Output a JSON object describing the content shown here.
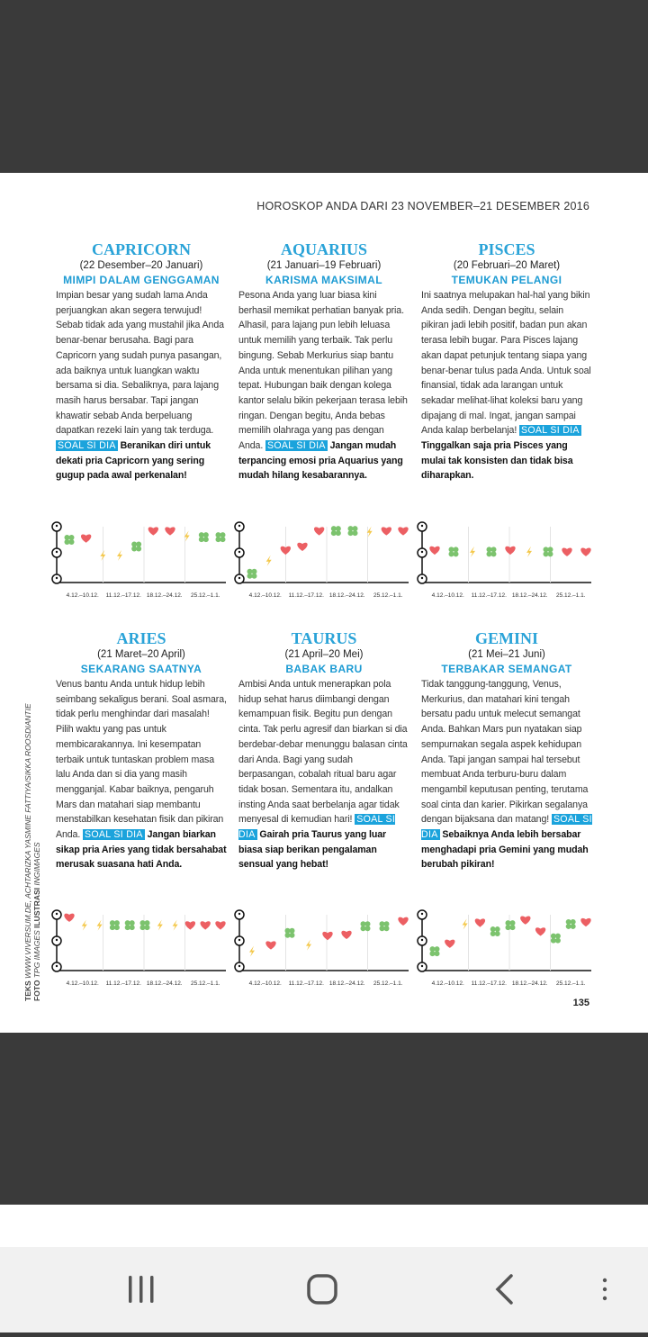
{
  "header": {
    "title": "HOROSKOP ANDA DARI 23 NOVEMBER–21 DESEMBER 2016"
  },
  "tip_label": "SOAL SI DIA",
  "weeks": [
    "4.12.–10.12.",
    "11.12.–17.12.",
    "18.12.–24.12.",
    "25.12.–1.1."
  ],
  "signs": [
    {
      "name": "CAPRICORN",
      "dates": "(22 Desember–20 Januari)",
      "subtitle": "MIMPI DALAM GENGGAMAN",
      "body": "Impian besar yang sudah lama Anda perjuangkan akan segera terwujud! Sebab tidak ada yang mustahil jika Anda benar-benar berusaha. Bagi para Capricorn yang sudah punya pasangan, ada baiknya untuk luangkan waktu bersama si dia. Sebaliknya, para lajang masih harus bersabar. Tapi jangan khawatir sebab Anda berpeluang dapatkan rezeki lain yang tak terduga.",
      "tip": "Beranikan diri untuk dekati pria Capricorn yang sering gugup pada awal perkenalan!"
    },
    {
      "name": "AQUARIUS",
      "dates": "(21 Januari–19 Februari)",
      "subtitle": "KARISMA MAKSIMAL",
      "body": "Pesona Anda yang luar biasa kini berhasil memikat perhatian banyak pria. Alhasil, para lajang pun lebih leluasa untuk memilih yang terbaik. Tak perlu bingung. Sebab Merkurius siap bantu Anda untuk menentukan pilihan yang tepat. Hubungan baik dengan kolega kantor selalu bikin pekerjaan terasa lebih ringan. Dengan begitu, Anda bebas memilih olahraga yang pas dengan Anda.",
      "tip": "Jangan mudah terpancing emosi pria Aquarius yang mudah hilang kesabarannya."
    },
    {
      "name": "PISCES",
      "dates": "(20 Februari–20 Maret)",
      "subtitle": "TEMUKAN PELANGI",
      "body": "Ini saatnya melupakan hal-hal yang bikin Anda sedih. Dengan begitu, selain pikiran jadi lebih positif, badan pun akan terasa lebih bugar. Para Pisces lajang akan dapat petunjuk tentang siapa yang benar-benar tulus pada Anda. Untuk soal finansial, tidak ada larangan untuk sekadar melihat-lihat koleksi baru yang dipajang di mal. Ingat, jangan sampai Anda kalap berbelanja!",
      "tip": "Tinggalkan saja pria Pisces yang mulai tak konsisten dan tidak bisa diharapkan."
    },
    {
      "name": "ARIES",
      "dates": "(21 Maret–20 April)",
      "subtitle": "SEKARANG SAATNYA",
      "body": "Venus bantu Anda untuk hidup lebih seimbang sekaligus berani. Soal asmara, tidak perlu menghindar dari masalah! Pilih waktu yang pas untuk membicarakannya. Ini kesempatan terbaik untuk tuntaskan problem masa lalu Anda dan si dia yang masih mengganjal. Kabar baiknya, pengaruh Mars dan matahari siap membantu menstabilkan kesehatan fisik dan pikiran Anda.",
      "tip": "Jangan biarkan sikap pria Aries yang tidak bersahabat merusak suasana hati Anda."
    },
    {
      "name": "TAURUS",
      "dates": "(21 April–20 Mei)",
      "subtitle": "BABAK BARU",
      "body": "Ambisi Anda untuk menerapkan pola hidup sehat harus diimbangi dengan kemampuan fisik. Begitu pun dengan cinta. Tak perlu agresif dan biarkan si dia berdebar-debar menunggu balasan cinta dari Anda. Bagi yang sudah berpasangan, cobalah ritual baru agar tidak bosan. Sementara itu, andalkan insting Anda saat berbelanja agar tidak menyesal di kemudian hari!",
      "tip": "Gairah pria Taurus yang luar biasa siap berikan pengalaman sensual yang hebat!"
    },
    {
      "name": "GEMINI",
      "dates": "(21 Mei–21 Juni)",
      "subtitle": "TERBAKAR SEMANGAT",
      "body": "Tidak tanggung-tanggung, Venus, Merkurius, dan matahari kini tengah bersatu padu untuk melecut semangat Anda. Bahkan Mars pun nyatakan siap sempurnakan segala aspek kehidupan Anda. Tapi jangan sampai hal tersebut membuat Anda terburu-buru dalam mengambil keputusan penting, terutama soal cinta dan karier. Pikirkan segalanya dengan bijaksana dan matang!",
      "tip": "Sebaiknya Anda lebih bersabar menghadapi pria Gemini yang mudah berubah pikiran!"
    }
  ],
  "credits": [
    [
      "TEKS",
      "WWW.VIVERSUM.DE, ACHTARIZKA YASMINE FATTIYA/SIKKA ROOSDIANTIE"
    ],
    [
      "FOTO",
      "TPG IMAGES",
      "ILUSTRASI",
      "INGIMAGES"
    ]
  ],
  "page_number": "135"
}
